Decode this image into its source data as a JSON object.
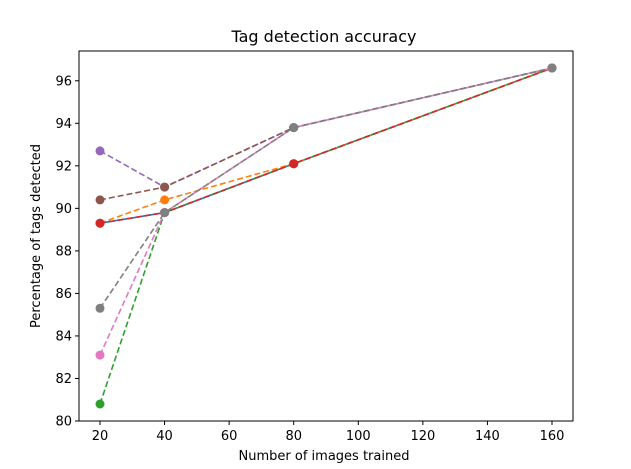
{
  "chart_data": {
    "type": "line",
    "title": "Tag detection accuracy",
    "xlabel": "Number of images trained",
    "ylabel": "Percentage of tags detected",
    "xlim": [
      13.5,
      166.5
    ],
    "ylim": [
      80,
      97.4
    ],
    "xticks": [
      20,
      40,
      60,
      80,
      100,
      120,
      140,
      160
    ],
    "yticks": [
      80,
      82,
      84,
      86,
      88,
      90,
      92,
      94,
      96
    ],
    "grid": false,
    "legend": "none",
    "series": [
      {
        "color": "#1f77b4",
        "style": "solid",
        "x": [
          20,
          40,
          80,
          160
        ],
        "y": [
          89.3,
          89.8,
          92.1,
          96.6
        ]
      },
      {
        "color": "#ff7f0e",
        "style": "dashed",
        "x": [
          20,
          40,
          80,
          160
        ],
        "y": [
          89.3,
          90.4,
          92.1,
          96.6
        ]
      },
      {
        "color": "#2ca02c",
        "style": "dashed",
        "x": [
          20,
          40,
          80,
          160
        ],
        "y": [
          80.8,
          89.8,
          92.1,
          96.6
        ]
      },
      {
        "color": "#d62728",
        "style": "dashed",
        "x": [
          20,
          40,
          80,
          160
        ],
        "y": [
          89.3,
          89.8,
          92.1,
          96.6
        ]
      },
      {
        "color": "#9467bd",
        "style": "dashed",
        "x": [
          20,
          40,
          80,
          160
        ],
        "y": [
          92.7,
          91.0,
          93.8,
          96.6
        ]
      },
      {
        "color": "#8c564b",
        "style": "dashed",
        "x": [
          20,
          40,
          80,
          160
        ],
        "y": [
          90.4,
          91.0,
          93.8,
          96.6
        ]
      },
      {
        "color": "#e377c2",
        "style": "dashed",
        "x": [
          20,
          40,
          80,
          160
        ],
        "y": [
          83.1,
          89.8,
          93.8,
          96.6
        ]
      },
      {
        "color": "#7f7f7f",
        "style": "dashed",
        "x": [
          20,
          40,
          80,
          160
        ],
        "y": [
          85.3,
          89.8,
          93.8,
          96.6
        ]
      }
    ]
  }
}
